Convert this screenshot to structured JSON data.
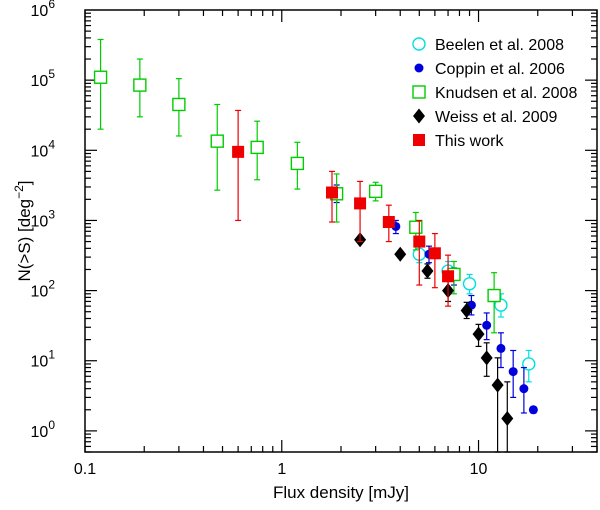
{
  "chart_data": {
    "type": "scatter",
    "title": "",
    "xlabel": "Flux density [mJy]",
    "ylabel_base": "N(>S) [deg",
    "ylabel_exp": "−2",
    "ylabel_close": "]",
    "xscale": "log",
    "yscale": "log",
    "xlim": [
      0.1,
      40
    ],
    "ylim": [
      0.5,
      1000000
    ],
    "x_ticks": [
      {
        "value": 0.1,
        "label": "0.1"
      },
      {
        "value": 1,
        "label": "1"
      },
      {
        "value": 10,
        "label": "10"
      }
    ],
    "y_ticks": [
      {
        "value": 1,
        "base": "10",
        "exp": "0"
      },
      {
        "value": 10,
        "base": "10",
        "exp": "1"
      },
      {
        "value": 100,
        "base": "10",
        "exp": "2"
      },
      {
        "value": 1000,
        "base": "10",
        "exp": "3"
      },
      {
        "value": 10000,
        "base": "10",
        "exp": "4"
      },
      {
        "value": 100000,
        "base": "10",
        "exp": "5"
      },
      {
        "value": 1000000,
        "base": "10",
        "exp": "6"
      }
    ],
    "legend_position": "top-right",
    "series": [
      {
        "name": "Beelen et al. 2008",
        "marker": "circle-open",
        "color": "#00e0e0",
        "points": [
          {
            "x": 5.0,
            "y": 330,
            "lo": 250,
            "hi": 430
          },
          {
            "x": 7.0,
            "y": 190,
            "lo": 140,
            "hi": 260
          },
          {
            "x": 9.0,
            "y": 125,
            "lo": 90,
            "hi": 170
          },
          {
            "x": 13.0,
            "y": 62,
            "lo": 42,
            "hi": 90
          },
          {
            "x": 18.0,
            "y": 9,
            "lo": 5,
            "hi": 14
          }
        ]
      },
      {
        "name": "Coppin et al. 2006",
        "marker": "circle-filled",
        "color": "#0000dd",
        "points": [
          {
            "x": 1.9,
            "y": 2400,
            "lo": 1800,
            "hi": 3200
          },
          {
            "x": 3.8,
            "y": 820,
            "lo": 650,
            "hi": 1000
          },
          {
            "x": 5.6,
            "y": 330,
            "lo": 250,
            "hi": 430
          },
          {
            "x": 7.5,
            "y": 160,
            "lo": 120,
            "hi": 210
          },
          {
            "x": 9.2,
            "y": 62,
            "lo": 45,
            "hi": 85
          },
          {
            "x": 11.0,
            "y": 32,
            "lo": 20,
            "hi": 48
          },
          {
            "x": 13.0,
            "y": 15,
            "lo": 8,
            "hi": 25
          },
          {
            "x": 15.0,
            "y": 7,
            "lo": 3,
            "hi": 14
          },
          {
            "x": 17.0,
            "y": 4,
            "lo": 1.8,
            "hi": 8
          },
          {
            "x": 19.0,
            "y": 2,
            "lo": 1.8,
            "hi": 2.2
          }
        ]
      },
      {
        "name": "Knudsen et al. 2008",
        "marker": "square-open",
        "color": "#00cc00",
        "points": [
          {
            "x": 0.12,
            "y": 110000,
            "lo": 20000,
            "hi": 380000
          },
          {
            "x": 0.19,
            "y": 85000,
            "lo": 30000,
            "hi": 200000
          },
          {
            "x": 0.3,
            "y": 45000,
            "lo": 16000,
            "hi": 105000
          },
          {
            "x": 0.47,
            "y": 13500,
            "lo": 2700,
            "hi": 45000
          },
          {
            "x": 0.75,
            "y": 11000,
            "lo": 3800,
            "hi": 26000
          },
          {
            "x": 1.2,
            "y": 6500,
            "lo": 2800,
            "hi": 13000
          },
          {
            "x": 1.9,
            "y": 2400,
            "lo": 950,
            "hi": 4600
          },
          {
            "x": 3.0,
            "y": 2600,
            "lo": 1900,
            "hi": 3500
          },
          {
            "x": 4.8,
            "y": 800,
            "lo": 380,
            "hi": 1300
          },
          {
            "x": 7.5,
            "y": 170,
            "lo": 90,
            "hi": 260
          },
          {
            "x": 12.0,
            "y": 85,
            "lo": 25,
            "hi": 180
          }
        ]
      },
      {
        "name": "Weiss et al. 2009",
        "marker": "diamond-filled",
        "color": "#000000",
        "points": [
          {
            "x": 2.5,
            "y": 530,
            "lo": 530,
            "hi": 530
          },
          {
            "x": 4.0,
            "y": 330,
            "lo": 330,
            "hi": 330
          },
          {
            "x": 5.5,
            "y": 190,
            "lo": 150,
            "hi": 240
          },
          {
            "x": 7.0,
            "y": 100,
            "lo": 70,
            "hi": 140
          },
          {
            "x": 8.7,
            "y": 52,
            "lo": 40,
            "hi": 68
          },
          {
            "x": 10.0,
            "y": 24,
            "lo": 16,
            "hi": 33
          },
          {
            "x": 11.0,
            "y": 11,
            "lo": 6,
            "hi": 18
          },
          {
            "x": 12.5,
            "y": 4.5,
            "lo": 0.5,
            "hi": 11
          },
          {
            "x": 14.0,
            "y": 1.5,
            "lo": 0.5,
            "hi": 5
          }
        ]
      },
      {
        "name": "This work",
        "marker": "square-filled",
        "color": "#ee0000",
        "points": [
          {
            "x": 0.6,
            "y": 9500,
            "lo": 1000,
            "hi": 37000
          },
          {
            "x": 1.8,
            "y": 2500,
            "lo": 950,
            "hi": 5000
          },
          {
            "x": 2.5,
            "y": 1750,
            "lo": 500,
            "hi": 3600
          },
          {
            "x": 3.5,
            "y": 950,
            "lo": 500,
            "hi": 1650
          },
          {
            "x": 5.0,
            "y": 500,
            "lo": 120,
            "hi": 1000
          },
          {
            "x": 6.0,
            "y": 340,
            "lo": 110,
            "hi": 650
          },
          {
            "x": 7.0,
            "y": 160,
            "lo": 60,
            "hi": 320
          }
        ]
      }
    ]
  }
}
